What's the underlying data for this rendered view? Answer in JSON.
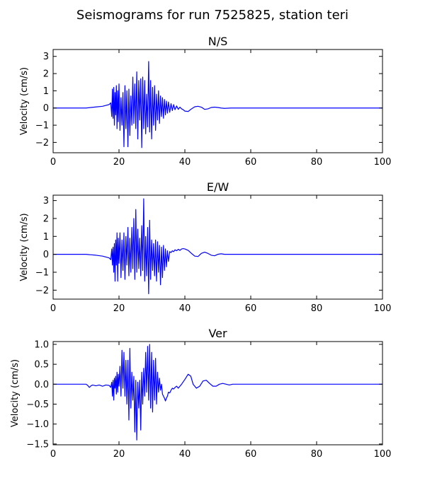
{
  "figure": {
    "title": "Seismograms for run 7525825, station teri"
  },
  "chart_data": [
    {
      "type": "line",
      "title": "N/S",
      "xlabel": "",
      "ylabel": "Velocity (cm/s)",
      "xlim": [
        0,
        100
      ],
      "ylim": [
        -2.6,
        3.4
      ],
      "xticks": [
        0,
        20,
        40,
        60,
        80,
        100
      ],
      "yticks": [
        -2,
        -1,
        0,
        1,
        2,
        3
      ],
      "grid": false,
      "series_color": "#0000ff",
      "series": [
        {
          "x": [
            0,
            10,
            11,
            13,
            15,
            16,
            17,
            17.5,
            17.8,
            18.0,
            18.2,
            18.4,
            18.6,
            18.8,
            19.0,
            19.2,
            19.4,
            19.6,
            19.8,
            20.0,
            20.3,
            20.6,
            20.9,
            21.2,
            21.5,
            21.8,
            22.1,
            22.4,
            22.7,
            23.0,
            23.3,
            23.6,
            23.9,
            24.2,
            24.5,
            24.8,
            25.1,
            25.4,
            25.7,
            26.0,
            26.3,
            26.6,
            26.9,
            27.2,
            27.5,
            27.8,
            28.1,
            28.4,
            28.7,
            29.0,
            29.3,
            29.6,
            29.9,
            30.2,
            30.5,
            30.8,
            31.1,
            31.4,
            31.7,
            32.0,
            32.3,
            32.6,
            32.9,
            33.2,
            33.5,
            33.8,
            34.1,
            34.4,
            34.7,
            35.0,
            35.4,
            35.8,
            36.2,
            36.6,
            37.0,
            37.5,
            38.0,
            38.5,
            39.0,
            39.5,
            40.0,
            41.0,
            42.0,
            43.0,
            44.0,
            45.0,
            46.0,
            47.0,
            48.0,
            49.0,
            50.0,
            51.0,
            52.0,
            54.0,
            56.0,
            100
          ],
          "y": [
            0,
            0,
            0.02,
            0.06,
            0.1,
            0.15,
            0.2,
            0.3,
            -0.5,
            1.1,
            -0.6,
            1.2,
            -1.0,
            0.9,
            -0.4,
            1.3,
            -1.2,
            1.0,
            -0.8,
            1.4,
            -1.3,
            0.6,
            -1.0,
            0.9,
            -2.25,
            1.3,
            -1.2,
            1.0,
            -2.25,
            1.1,
            -1.6,
            0.7,
            -1.0,
            1.8,
            -0.9,
            1.4,
            -1.2,
            2.1,
            -1.8,
            1.6,
            -0.7,
            1.7,
            -2.3,
            1.8,
            -1.2,
            1.6,
            -1.5,
            0.8,
            -1.1,
            2.7,
            -1.4,
            1.6,
            -1.8,
            1.2,
            -1.0,
            1.3,
            -1.3,
            0.8,
            -0.7,
            1.0,
            -0.9,
            0.7,
            -0.5,
            0.6,
            -0.6,
            0.5,
            -0.4,
            0.4,
            -0.3,
            0.35,
            -0.25,
            0.25,
            -0.15,
            0.2,
            -0.1,
            0.12,
            -0.08,
            0.05,
            -0.05,
            -0.1,
            -0.18,
            -0.2,
            -0.05,
            0.07,
            0.1,
            0.05,
            -0.08,
            -0.05,
            0.03,
            0.05,
            0.03,
            0,
            -0.02,
            0,
            0,
            0
          ]
        }
      ]
    },
    {
      "type": "line",
      "title": "E/W",
      "xlabel": "",
      "ylabel": "Velocity (cm/s)",
      "xlim": [
        0,
        100
      ],
      "ylim": [
        -2.5,
        3.3
      ],
      "xticks": [
        0,
        20,
        40,
        60,
        80,
        100
      ],
      "yticks": [
        -2,
        -1,
        0,
        1,
        2,
        3
      ],
      "grid": false,
      "series_color": "#0000ff",
      "series": [
        {
          "x": [
            0,
            10,
            11,
            13,
            15,
            16,
            17,
            17.5,
            17.8,
            18.0,
            18.2,
            18.4,
            18.6,
            18.8,
            19.0,
            19.2,
            19.4,
            19.6,
            19.8,
            20.0,
            20.3,
            20.6,
            20.9,
            21.2,
            21.5,
            21.8,
            22.1,
            22.4,
            22.7,
            23.0,
            23.3,
            23.6,
            23.9,
            24.2,
            24.5,
            24.8,
            25.1,
            25.4,
            25.7,
            26.0,
            26.3,
            26.6,
            26.9,
            27.2,
            27.5,
            27.8,
            28.1,
            28.4,
            28.7,
            29.0,
            29.3,
            29.6,
            29.9,
            30.2,
            30.5,
            30.8,
            31.1,
            31.4,
            31.7,
            32.0,
            32.3,
            32.6,
            32.9,
            33.2,
            33.5,
            33.8,
            34.1,
            34.4,
            34.7,
            35.0,
            35.4,
            35.8,
            36.2,
            36.6,
            37.0,
            37.5,
            38.0,
            38.5,
            39.0,
            39.5,
            40.0,
            41.0,
            42.0,
            43.0,
            44.0,
            45.0,
            46.0,
            47.0,
            48.0,
            49.0,
            50.0,
            51.0,
            52.0,
            54.0,
            56.0,
            100
          ],
          "y": [
            0,
            0,
            -0.02,
            -0.05,
            -0.1,
            -0.15,
            -0.2,
            -0.3,
            0.3,
            -0.6,
            0.4,
            -1.0,
            0.6,
            -1.5,
            0.8,
            -0.6,
            1.2,
            -1.5,
            0.9,
            -0.5,
            1.2,
            -1.3,
            0.8,
            -0.9,
            1.2,
            -1.4,
            1.0,
            -0.6,
            1.5,
            -1.2,
            0.9,
            -1.0,
            1.5,
            -0.8,
            2.0,
            -1.4,
            2.5,
            -1.0,
            1.4,
            -0.8,
            0.9,
            -1.2,
            1.6,
            -0.9,
            3.1,
            -1.5,
            1.0,
            -1.2,
            1.5,
            -2.2,
            1.9,
            -1.4,
            0.8,
            -0.9,
            0.6,
            -1.2,
            0.8,
            -1.5,
            0.7,
            -1.0,
            0.5,
            -1.7,
            0.4,
            -1.3,
            0.5,
            -0.9,
            0.3,
            -0.7,
            0.2,
            -0.4,
            0.15,
            0.1,
            0.2,
            0.15,
            0.25,
            0.2,
            0.28,
            0.22,
            0.3,
            0.32,
            0.3,
            0.22,
            0.05,
            -0.1,
            -0.12,
            0.05,
            0.12,
            0.05,
            -0.05,
            -0.08,
            0,
            0.03,
            0,
            0,
            0,
            0
          ]
        }
      ]
    },
    {
      "type": "line",
      "title": "Ver",
      "xlabel": "",
      "ylabel": "Velocity (cm/s)",
      "xlim": [
        0,
        100
      ],
      "ylim": [
        -1.52,
        1.07
      ],
      "xticks": [
        0,
        20,
        40,
        60,
        80,
        100
      ],
      "yticks": [
        -1.5,
        -1.0,
        -0.5,
        0.0,
        0.5,
        1.0
      ],
      "yticklabels": [
        "−1.5",
        "−1.0",
        "−0.5",
        "0.0",
        "0.5",
        "1.0"
      ],
      "grid": false,
      "series_color": "#0000ff",
      "series": [
        {
          "x": [
            0,
            10,
            10.5,
            11,
            11.5,
            12,
            13,
            14,
            15,
            16,
            17,
            17.5,
            17.8,
            18.0,
            18.2,
            18.4,
            18.6,
            18.8,
            19.0,
            19.2,
            19.4,
            19.6,
            19.8,
            20.0,
            20.3,
            20.6,
            20.9,
            21.2,
            21.5,
            21.8,
            22.1,
            22.4,
            22.7,
            23.0,
            23.3,
            23.6,
            23.9,
            24.2,
            24.5,
            24.8,
            25.1,
            25.4,
            25.7,
            26.0,
            26.3,
            26.6,
            26.9,
            27.2,
            27.5,
            27.8,
            28.1,
            28.4,
            28.7,
            29.0,
            29.3,
            29.6,
            29.9,
            30.2,
            30.5,
            30.8,
            31.1,
            31.4,
            31.7,
            32.0,
            32.3,
            32.6,
            32.9,
            33.2,
            33.5,
            33.8,
            34.1,
            34.4,
            34.7,
            35.0,
            35.4,
            35.8,
            36.2,
            36.6,
            37.0,
            37.5,
            38.0,
            38.5,
            39.0,
            40.0,
            41.0,
            41.8,
            42.5,
            43.5,
            44.5,
            45.5,
            46.5,
            47.5,
            48.5,
            49.5,
            50.5,
            51.5,
            52.5,
            53.5,
            54.5,
            56.0,
            58.0,
            100
          ],
          "y": [
            0,
            0,
            -0.03,
            -0.08,
            -0.04,
            -0.02,
            -0.04,
            -0.02,
            -0.05,
            -0.02,
            -0.03,
            -0.08,
            0.05,
            -0.3,
            0.1,
            -0.4,
            0.15,
            -0.1,
            0.2,
            -0.25,
            0.3,
            -0.2,
            0.25,
            -0.05,
            0.45,
            -0.3,
            0.85,
            -0.1,
            0.8,
            -0.3,
            0.6,
            -0.5,
            0.6,
            -0.9,
            0.9,
            -0.6,
            0.3,
            -0.4,
            0.2,
            -1.2,
            0.1,
            -1.4,
            0.05,
            -0.6,
            0.1,
            -1.15,
            0.3,
            -0.5,
            0.4,
            -0.3,
            0.8,
            -0.2,
            0.95,
            -0.4,
            1.0,
            -0.6,
            0.8,
            -0.7,
            0.6,
            -0.4,
            0.65,
            -0.5,
            0.3,
            -0.2,
            0.15,
            -0.15,
            0,
            -0.25,
            -0.3,
            -0.35,
            -0.42,
            -0.35,
            -0.3,
            -0.2,
            -0.22,
            -0.15,
            -0.1,
            -0.12,
            -0.08,
            -0.05,
            -0.1,
            -0.05,
            0,
            0.12,
            0.25,
            0.2,
            0.0,
            -0.1,
            -0.05,
            0.08,
            0.1,
            0.02,
            -0.05,
            -0.05,
            0.0,
            0.02,
            0.0,
            -0.02,
            0,
            0,
            0,
            0
          ]
        }
      ]
    }
  ]
}
